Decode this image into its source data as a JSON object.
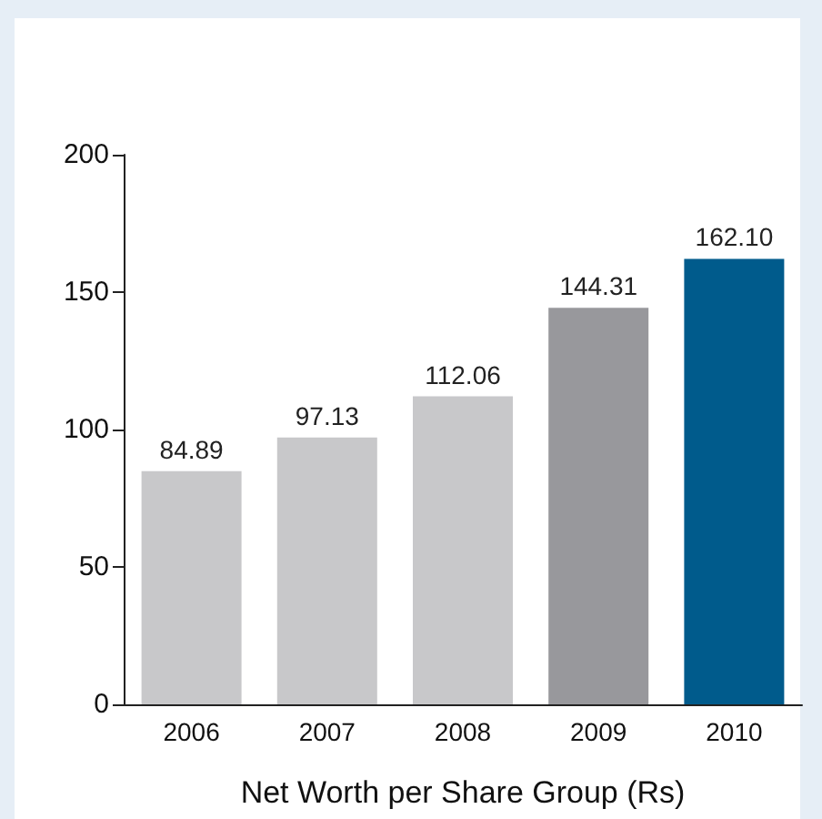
{
  "chart_data": {
    "type": "bar",
    "xlabel": "Net Worth per Share Group (Rs)",
    "categories": [
      "2006",
      "2007",
      "2008",
      "2009",
      "2010"
    ],
    "values": [
      84.89,
      97.13,
      112.06,
      144.31,
      162.1
    ],
    "colors": [
      "#c8c8ca",
      "#c8c8ca",
      "#c8c8ca",
      "#98989c",
      "#005b8c"
    ],
    "value_labels": [
      "84.89",
      "97.13",
      "112.06",
      "144.31",
      "162.10"
    ],
    "ylim": [
      0,
      200
    ],
    "yticks": [
      0,
      50,
      100,
      150,
      200
    ],
    "grid": false
  }
}
